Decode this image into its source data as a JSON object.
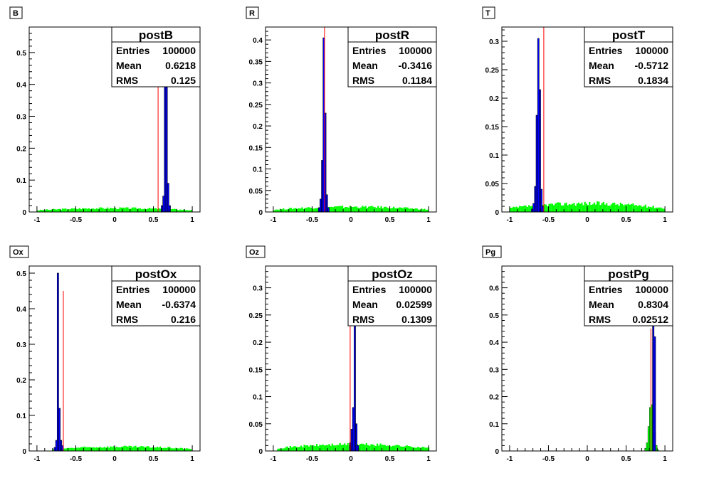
{
  "colors": {
    "background": "#ffffff",
    "axis": "#000000",
    "green_fill": "#00ff00",
    "blue_fill": "#0000ff",
    "red_line": "#ff0000"
  },
  "chart_data": [
    {
      "type": "histogram",
      "pad_label": "B",
      "stats": {
        "title": "postB",
        "rows": [
          [
            "Entries",
            "100000"
          ],
          [
            "Mean",
            "0.6218"
          ],
          [
            "RMS",
            "0.125"
          ]
        ]
      },
      "xlim": [
        -1.1,
        1.1
      ],
      "ylim": [
        0,
        0.58
      ],
      "xticks": [
        -1,
        -0.5,
        0,
        0.5,
        1
      ],
      "xtick_labels": [
        "-1",
        "-0.5",
        "0",
        "0.5",
        "1"
      ],
      "yticks": [
        0,
        0.1,
        0.2,
        0.3,
        0.4,
        0.5
      ],
      "ytick_labels": [
        "0",
        "0.1",
        "0.2",
        "0.3",
        "0.4",
        "0.5"
      ],
      "green": {
        "range": [
          -1,
          1
        ],
        "level": 0.012
      },
      "blue": [
        {
          "x": 0.6,
          "y": 0.02
        },
        {
          "x": 0.62,
          "y": 0.05
        },
        {
          "x": 0.64,
          "y": 0.41
        },
        {
          "x": 0.66,
          "y": 0.42
        },
        {
          "x": 0.68,
          "y": 0.09
        },
        {
          "x": 0.7,
          "y": 0.02
        }
      ],
      "red_line": {
        "x": 0.56,
        "height": 0.45
      }
    },
    {
      "type": "histogram",
      "pad_label": "R",
      "stats": {
        "title": "postR",
        "rows": [
          [
            "Entries",
            "100000"
          ],
          [
            "Mean",
            "-0.3416"
          ],
          [
            "RMS",
            "0.1184"
          ]
        ]
      },
      "xlim": [
        -1.1,
        1.1
      ],
      "ylim": [
        0,
        0.43
      ],
      "xticks": [
        -1,
        -0.5,
        0,
        0.5,
        1
      ],
      "xtick_labels": [
        "-1",
        "-0.5",
        "0",
        "0.5",
        "1"
      ],
      "yticks": [
        0,
        0.05,
        0.1,
        0.15,
        0.2,
        0.25,
        0.3,
        0.35,
        0.4
      ],
      "ytick_labels": [
        "0",
        "0.05",
        "0.1",
        "0.15",
        "0.2",
        "0.25",
        "0.3",
        "0.35",
        "0.4"
      ],
      "green": {
        "range": [
          -1,
          1
        ],
        "level": 0.012
      },
      "blue": [
        {
          "x": -0.42,
          "y": 0.01
        },
        {
          "x": -0.4,
          "y": 0.03
        },
        {
          "x": -0.38,
          "y": 0.12
        },
        {
          "x": -0.36,
          "y": 0.405
        },
        {
          "x": -0.34,
          "y": 0.23
        },
        {
          "x": -0.32,
          "y": 0.04
        },
        {
          "x": -0.3,
          "y": 0.01
        }
      ],
      "red_line": {
        "x": -0.34,
        "height": 0.43
      }
    },
    {
      "type": "histogram",
      "pad_label": "T",
      "stats": {
        "title": "postT",
        "rows": [
          [
            "Entries",
            "100000"
          ],
          [
            "Mean",
            "-0.5712"
          ],
          [
            "RMS",
            "0.1834"
          ]
        ]
      },
      "xlim": [
        -1.1,
        1.1
      ],
      "ylim": [
        0,
        0.325
      ],
      "xticks": [
        -1,
        -0.5,
        0,
        0.5,
        1
      ],
      "xtick_labels": [
        "-1",
        "-0.5",
        "0",
        "0.5",
        "1"
      ],
      "yticks": [
        0,
        0.05,
        0.1,
        0.15,
        0.2,
        0.25,
        0.3
      ],
      "ytick_labels": [
        "0",
        "0.05",
        "0.1",
        "0.15",
        "0.2",
        "0.25",
        "0.3"
      ],
      "green": {
        "range": [
          -1,
          1
        ],
        "level": 0.015
      },
      "blue": [
        {
          "x": -0.72,
          "y": 0.005
        },
        {
          "x": -0.7,
          "y": 0.015
        },
        {
          "x": -0.68,
          "y": 0.045
        },
        {
          "x": -0.66,
          "y": 0.17
        },
        {
          "x": -0.64,
          "y": 0.305
        },
        {
          "x": -0.62,
          "y": 0.215
        },
        {
          "x": -0.6,
          "y": 0.04
        },
        {
          "x": -0.58,
          "y": 0.01
        }
      ],
      "red_line": {
        "x": -0.56,
        "height": 0.325
      }
    },
    {
      "type": "histogram",
      "pad_label": "Ox",
      "stats": {
        "title": "postOx",
        "rows": [
          [
            "Entries",
            "100000"
          ],
          [
            "Mean",
            "-0.6374"
          ],
          [
            "RMS",
            "0.216"
          ]
        ]
      },
      "xlim": [
        -1.1,
        1.1
      ],
      "ylim": [
        0,
        0.52
      ],
      "xticks": [
        -1,
        -0.5,
        0,
        0.5,
        1
      ],
      "xtick_labels": [
        "-1",
        "-0.5",
        "0",
        "0.5",
        "1"
      ],
      "yticks": [
        0,
        0.1,
        0.2,
        0.3,
        0.4,
        0.5
      ],
      "ytick_labels": [
        "0",
        "0.1",
        "0.2",
        "0.3",
        "0.4",
        "0.5"
      ],
      "green": {
        "range": [
          -0.8,
          1
        ],
        "level": 0.012
      },
      "blue": [
        {
          "x": -0.78,
          "y": 0.01
        },
        {
          "x": -0.76,
          "y": 0.03
        },
        {
          "x": -0.74,
          "y": 0.5
        },
        {
          "x": -0.72,
          "y": 0.12
        },
        {
          "x": -0.7,
          "y": 0.03
        },
        {
          "x": -0.68,
          "y": 0.015
        }
      ],
      "red_line": {
        "x": -0.66,
        "height": 0.45
      }
    },
    {
      "type": "histogram",
      "pad_label": "Oz",
      "stats": {
        "title": "postOz",
        "rows": [
          [
            "Entries",
            "100000"
          ],
          [
            "Mean",
            "0.02599"
          ],
          [
            "RMS",
            "0.1309"
          ]
        ]
      },
      "xlim": [
        -1.1,
        1.1
      ],
      "ylim": [
        0,
        0.34
      ],
      "xticks": [
        -1,
        -0.5,
        0,
        0.5,
        1
      ],
      "xtick_labels": [
        "-1",
        "-0.5",
        "0",
        "0.5",
        "1"
      ],
      "yticks": [
        0,
        0.05,
        0.1,
        0.15,
        0.2,
        0.25,
        0.3
      ],
      "ytick_labels": [
        "0",
        "0.05",
        "0.1",
        "0.15",
        "0.2",
        "0.25",
        "0.3"
      ],
      "green": {
        "range": [
          -0.95,
          1
        ],
        "level": 0.012
      },
      "blue": [
        {
          "x": -0.02,
          "y": 0.015
        },
        {
          "x": 0.0,
          "y": 0.04
        },
        {
          "x": 0.02,
          "y": 0.08
        },
        {
          "x": 0.04,
          "y": 0.29
        },
        {
          "x": 0.06,
          "y": 0.05
        },
        {
          "x": 0.08,
          "y": 0.01
        }
      ],
      "red_line": {
        "x": -0.01,
        "height": 0.34
      }
    },
    {
      "type": "histogram",
      "pad_label": "Pg",
      "stats": {
        "title": "postPg",
        "rows": [
          [
            "Entries",
            "100000"
          ],
          [
            "Mean",
            "0.8304"
          ],
          [
            "RMS",
            "0.02512"
          ]
        ]
      },
      "xlim": [
        -1.1,
        1.1
      ],
      "ylim": [
        0,
        0.68
      ],
      "xticks": [
        -1,
        -0.5,
        0,
        0.5,
        1
      ],
      "xtick_labels": [
        "-1",
        "-0.5",
        "0",
        "0.5",
        "1"
      ],
      "yticks": [
        0,
        0.1,
        0.2,
        0.3,
        0.4,
        0.5,
        0.6
      ],
      "ytick_labels": [
        "0",
        "0.1",
        "0.2",
        "0.3",
        "0.4",
        "0.5",
        "0.6"
      ],
      "green": {
        "range": [
          0.74,
          0.92
        ],
        "level": 0.0
      },
      "green_bins": [
        {
          "x": 0.74,
          "y": 0.01
        },
        {
          "x": 0.76,
          "y": 0.03
        },
        {
          "x": 0.78,
          "y": 0.09
        },
        {
          "x": 0.8,
          "y": 0.16
        },
        {
          "x": 0.82,
          "y": 0.17
        },
        {
          "x": 0.84,
          "y": 0.12
        },
        {
          "x": 0.86,
          "y": 0.07
        },
        {
          "x": 0.88,
          "y": 0.02
        },
        {
          "x": 0.9,
          "y": 0.005
        }
      ],
      "blue": [
        {
          "x": 0.84,
          "y": 0.58
        },
        {
          "x": 0.86,
          "y": 0.42
        }
      ],
      "red_line": {
        "x": 0.82,
        "height": 0.45
      }
    }
  ]
}
